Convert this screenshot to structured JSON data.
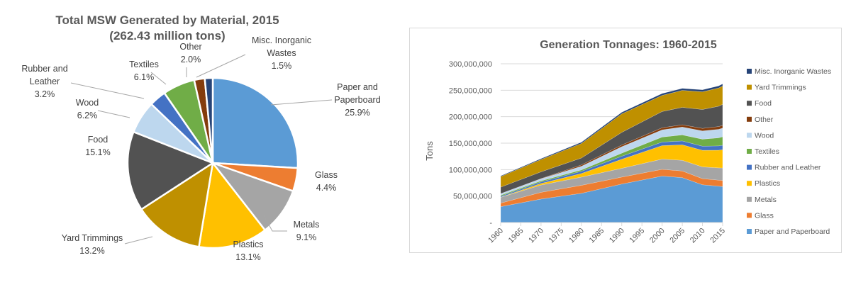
{
  "chart_data": [
    {
      "type": "pie",
      "title": "Total MSW Generated by Material, 2015",
      "subtitle": "(262.43 million tons)",
      "start_angle_note": "clockwise from 12 o'clock",
      "slices": [
        {
          "name": "Paper and Paperboard",
          "label_lines": [
            "Paper and",
            "Paperboard"
          ],
          "value": 25.9,
          "label": "25.9%",
          "color": "#5b9bd5"
        },
        {
          "name": "Glass",
          "label_lines": [
            "Glass"
          ],
          "value": 4.4,
          "label": "4.4%",
          "color": "#ed7d31"
        },
        {
          "name": "Metals",
          "label_lines": [
            "Metals"
          ],
          "value": 9.1,
          "label": "9.1%",
          "color": "#a5a5a5"
        },
        {
          "name": "Plastics",
          "label_lines": [
            "Plastics"
          ],
          "value": 13.1,
          "label": "13.1%",
          "color": "#ffc000"
        },
        {
          "name": "Yard Trimmings",
          "label_lines": [
            "Yard Trimmings"
          ],
          "value": 13.2,
          "label": "13.2%",
          "color": "#bf9000"
        },
        {
          "name": "Food",
          "label_lines": [
            "Food"
          ],
          "value": 15.1,
          "label": "15.1%",
          "color": "#525252"
        },
        {
          "name": "Wood",
          "label_lines": [
            "Wood"
          ],
          "value": 6.2,
          "label": "6.2%",
          "color": "#bdd7ee"
        },
        {
          "name": "Rubber and Leather",
          "label_lines": [
            "Rubber and",
            "Leather"
          ],
          "value": 3.2,
          "label": "3.2%",
          "color": "#4472c4"
        },
        {
          "name": "Textiles",
          "label_lines": [
            "Textiles"
          ],
          "value": 6.1,
          "label": "6.1%",
          "color": "#70ad47"
        },
        {
          "name": "Other",
          "label_lines": [
            "Other"
          ],
          "value": 2.0,
          "label": "2.0%",
          "color": "#843c0c"
        },
        {
          "name": "Misc. Inorganic Wastes",
          "label_lines": [
            "Misc. Inorganic",
            "Wastes"
          ],
          "value": 1.5,
          "label": "1.5%",
          "color": "#264478"
        }
      ]
    },
    {
      "type": "area",
      "stacked": true,
      "title": "Generation Tonnages: 1960-2015",
      "xlabel": "",
      "ylabel": "Tons",
      "ylim": [
        0,
        300000000
      ],
      "yticks": [
        0,
        50000000,
        100000000,
        150000000,
        200000000,
        250000000,
        300000000
      ],
      "ytick_labels": [
        "-",
        "50,000,000",
        "100,000,000",
        "150,000,000",
        "200,000,000",
        "250,000,000",
        "300,000,000"
      ],
      "xlim": [
        1960,
        2015
      ],
      "xticks": [
        1960,
        1965,
        1970,
        1975,
        1980,
        1985,
        1990,
        1995,
        2000,
        2005,
        2010,
        2015
      ],
      "x": [
        1960,
        1970,
        1980,
        1990,
        2000,
        2005,
        2010,
        2014,
        2015
      ],
      "grid": true,
      "legend_position": "right",
      "series": [
        {
          "name": "Paper and Paperboard",
          "color": "#5b9bd5",
          "values": [
            29990000,
            44310000,
            55160000,
            72730000,
            87740000,
            84840000,
            71310000,
            68610000,
            67950000
          ]
        },
        {
          "name": "Glass",
          "color": "#ed7d31",
          "values": [
            6720000,
            12740000,
            15130000,
            13100000,
            12770000,
            12540000,
            11530000,
            11480000,
            11470000
          ]
        },
        {
          "name": "Metals",
          "color": "#a5a5a5",
          "values": [
            10820000,
            13830000,
            15510000,
            16550000,
            19300000,
            20210000,
            22250000,
            23130000,
            23740000
          ]
        },
        {
          "name": "Plastics",
          "color": "#ffc000",
          "values": [
            390000,
            2900000,
            6830000,
            17130000,
            25550000,
            29250000,
            31400000,
            33390000,
            34500000
          ]
        },
        {
          "name": "Rubber and Leather",
          "color": "#4472c4",
          "values": [
            1840000,
            2970000,
            4200000,
            5790000,
            6670000,
            7290000,
            7750000,
            8210000,
            8360000
          ]
        },
        {
          "name": "Textiles",
          "color": "#70ad47",
          "values": [
            1760000,
            2040000,
            2530000,
            5810000,
            9480000,
            11510000,
            13220000,
            15240000,
            16030000
          ]
        },
        {
          "name": "Wood",
          "color": "#bdd7ee",
          "values": [
            3030000,
            3720000,
            7010000,
            12210000,
            13570000,
            14790000,
            15710000,
            16120000,
            16300000
          ]
        },
        {
          "name": "Other",
          "color": "#843c0c",
          "values": [
            70000,
            470000,
            2520000,
            3190000,
            4000000,
            4290000,
            4710000,
            5160000,
            5220000
          ]
        },
        {
          "name": "Food",
          "color": "#525252",
          "values": [
            12200000,
            12800000,
            13000000,
            23860000,
            30700000,
            32930000,
            35740000,
            38400000,
            39730000
          ]
        },
        {
          "name": "Yard Trimmings",
          "color": "#bf9000",
          "values": [
            20000000,
            23200000,
            27500000,
            35000000,
            30530000,
            32070000,
            33400000,
            34500000,
            34720000
          ]
        },
        {
          "name": "Misc. Inorganic Wastes",
          "color": "#264478",
          "values": [
            1300000,
            1780000,
            2250000,
            2900000,
            3500000,
            3690000,
            3840000,
            3940000,
            3970000
          ]
        }
      ],
      "legend_order": [
        "Misc. Inorganic Wastes",
        "Yard Trimmings",
        "Food",
        "Other",
        "Wood",
        "Textiles",
        "Rubber and Leather",
        "Plastics",
        "Metals",
        "Glass",
        "Paper and Paperboard"
      ]
    }
  ]
}
